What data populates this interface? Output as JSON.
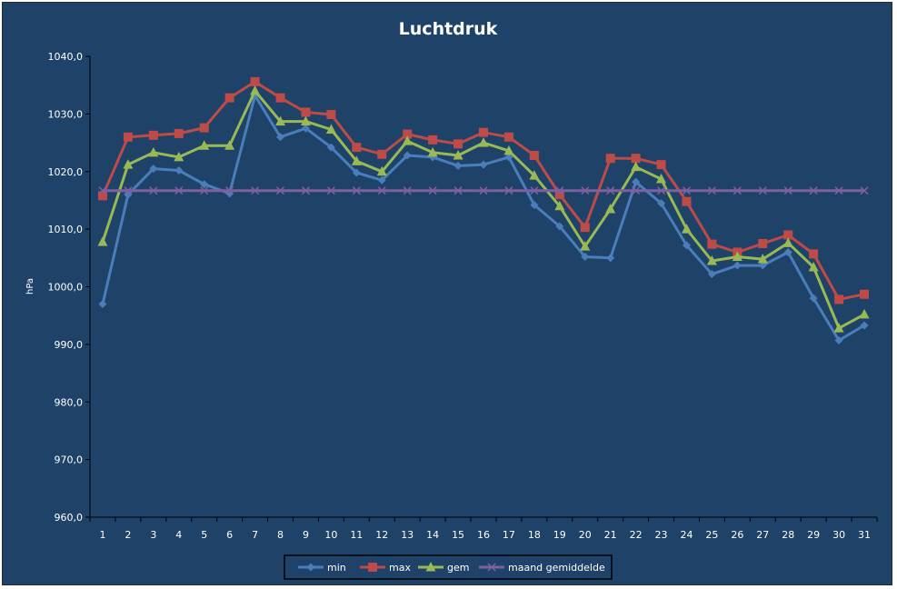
{
  "chart_data": {
    "type": "line",
    "title": "Luchtdruk",
    "xlabel": "",
    "ylabel": "hPa",
    "ylim": [
      960,
      1040
    ],
    "y_ticks": [
      "960,0",
      "970,0",
      "980,0",
      "990,0",
      "1000,0",
      "1010,0",
      "1020,0",
      "1030,0",
      "1040,0"
    ],
    "categories": [
      "1",
      "2",
      "3",
      "4",
      "5",
      "6",
      "7",
      "8",
      "9",
      "10",
      "11",
      "12",
      "13",
      "14",
      "15",
      "16",
      "17",
      "18",
      "19",
      "20",
      "21",
      "22",
      "23",
      "24",
      "25",
      "26",
      "27",
      "28",
      "29",
      "30",
      "31"
    ],
    "grid": false,
    "legend_position": "bottom",
    "series": [
      {
        "name": "min",
        "color": "#4a7ebb",
        "marker": "diamond",
        "values": [
          997.0,
          1016.0,
          1020.5,
          1020.2,
          1017.8,
          1016.2,
          1033.2,
          1026.0,
          1027.5,
          1024.2,
          1019.8,
          1018.5,
          1022.8,
          1022.5,
          1021.0,
          1021.2,
          1022.5,
          1014.2,
          1010.5,
          1005.2,
          1005.0,
          1018.2,
          1014.5,
          1007.2,
          1002.2,
          1003.7,
          1003.7,
          1006.0,
          998.0,
          990.7,
          993.3
        ]
      },
      {
        "name": "max",
        "color": "#be4b48",
        "marker": "square",
        "values": [
          1015.8,
          1026.0,
          1026.3,
          1026.6,
          1027.6,
          1032.8,
          1035.6,
          1032.8,
          1030.3,
          1029.9,
          1024.2,
          1023.0,
          1026.5,
          1025.5,
          1024.8,
          1026.8,
          1026.0,
          1022.8,
          1016.0,
          1010.3,
          1022.3,
          1022.3,
          1021.2,
          1014.8,
          1007.4,
          1006.0,
          1007.5,
          1009.0,
          1005.7,
          997.8,
          998.7
        ]
      },
      {
        "name": "gem",
        "color": "#98b954",
        "marker": "triangle",
        "values": [
          1007.8,
          1021.2,
          1023.3,
          1022.5,
          1024.5,
          1024.5,
          1034.0,
          1028.7,
          1028.7,
          1027.3,
          1021.8,
          1020.0,
          1025.3,
          1023.3,
          1022.8,
          1025.0,
          1023.6,
          1019.3,
          1014.0,
          1007.0,
          1013.5,
          1020.8,
          1018.7,
          1010.0,
          1004.5,
          1005.2,
          1004.8,
          1007.6,
          1003.4,
          992.8,
          995.2
        ]
      },
      {
        "name": "maand gemiddelde",
        "color": "#7d60a0",
        "marker": "x",
        "values": [
          1016.7,
          1016.7,
          1016.7,
          1016.7,
          1016.7,
          1016.7,
          1016.7,
          1016.7,
          1016.7,
          1016.7,
          1016.7,
          1016.7,
          1016.7,
          1016.7,
          1016.7,
          1016.7,
          1016.7,
          1016.7,
          1016.7,
          1016.7,
          1016.7,
          1016.7,
          1016.7,
          1016.7,
          1016.7,
          1016.7,
          1016.7,
          1016.7,
          1016.7,
          1016.7,
          1016.7
        ]
      }
    ]
  }
}
